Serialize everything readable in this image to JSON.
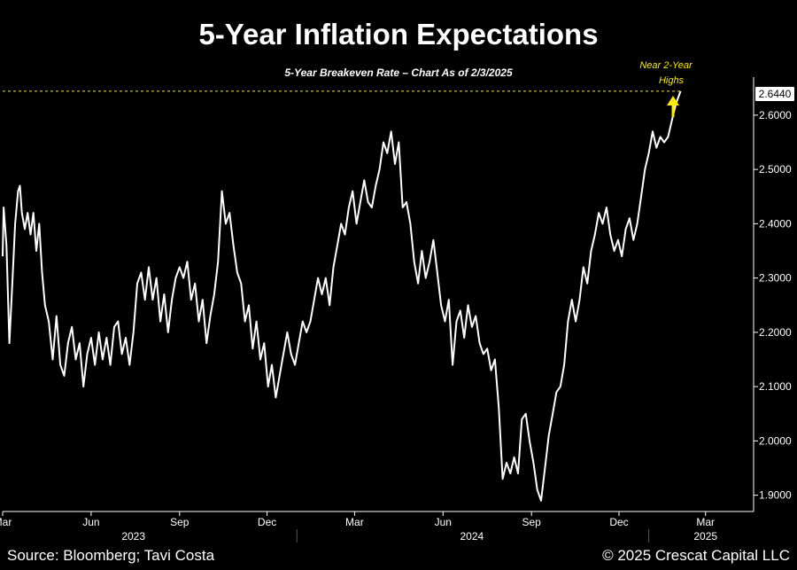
{
  "chart_data": {
    "type": "line",
    "title": "5-Year Inflation Expectations",
    "subtitle": "5-Year Breakeven Rate – Chart As of 2/3/2025",
    "ylim": [
      1.87,
      2.67
    ],
    "yticks": [
      "1.9000",
      "2.0000",
      "2.1000",
      "2.2000",
      "2.3000",
      "2.4000",
      "2.5000",
      "2.6000"
    ],
    "last_value_label": "2.6440",
    "last_value": 2.644,
    "x_month_ticks": [
      {
        "label": "Mar",
        "date": "2023-03-01"
      },
      {
        "label": "Jun",
        "date": "2023-06-01"
      },
      {
        "label": "Sep",
        "date": "2023-09-01"
      },
      {
        "label": "Dec",
        "date": "2023-12-01"
      },
      {
        "label": "Mar",
        "date": "2024-03-01"
      },
      {
        "label": "Jun",
        "date": "2024-06-01"
      },
      {
        "label": "Sep",
        "date": "2024-09-01"
      },
      {
        "label": "Dec",
        "date": "2024-12-01"
      },
      {
        "label": "Mar",
        "date": "2025-03-01"
      }
    ],
    "x_year_labels": [
      {
        "label": "2023",
        "date": "2023-07-15"
      },
      {
        "label": "2024",
        "date": "2024-07-01"
      },
      {
        "label": "2025",
        "date": "2025-03-01"
      }
    ],
    "x_range": [
      "2023-03-01",
      "2025-04-20"
    ],
    "series": [
      {
        "color": "#ffffff",
        "points": [
          [
            "2023-03-01",
            2.34
          ],
          [
            "2023-03-02",
            2.43
          ],
          [
            "2023-03-05",
            2.36
          ],
          [
            "2023-03-08",
            2.18
          ],
          [
            "2023-03-11",
            2.29
          ],
          [
            "2023-03-14",
            2.4
          ],
          [
            "2023-03-17",
            2.46
          ],
          [
            "2023-03-19",
            2.47
          ],
          [
            "2023-03-21",
            2.42
          ],
          [
            "2023-03-24",
            2.39
          ],
          [
            "2023-03-27",
            2.42
          ],
          [
            "2023-03-30",
            2.38
          ],
          [
            "2023-04-02",
            2.42
          ],
          [
            "2023-04-05",
            2.35
          ],
          [
            "2023-04-08",
            2.4
          ],
          [
            "2023-04-11",
            2.31
          ],
          [
            "2023-04-14",
            2.25
          ],
          [
            "2023-04-18",
            2.22
          ],
          [
            "2023-04-22",
            2.15
          ],
          [
            "2023-04-26",
            2.23
          ],
          [
            "2023-04-30",
            2.14
          ],
          [
            "2023-05-04",
            2.12
          ],
          [
            "2023-05-08",
            2.18
          ],
          [
            "2023-05-12",
            2.21
          ],
          [
            "2023-05-16",
            2.15
          ],
          [
            "2023-05-20",
            2.18
          ],
          [
            "2023-05-24",
            2.1
          ],
          [
            "2023-05-28",
            2.16
          ],
          [
            "2023-06-01",
            2.19
          ],
          [
            "2023-06-05",
            2.14
          ],
          [
            "2023-06-09",
            2.2
          ],
          [
            "2023-06-13",
            2.15
          ],
          [
            "2023-06-17",
            2.19
          ],
          [
            "2023-06-21",
            2.14
          ],
          [
            "2023-06-25",
            2.21
          ],
          [
            "2023-06-29",
            2.22
          ],
          [
            "2023-07-03",
            2.16
          ],
          [
            "2023-07-07",
            2.19
          ],
          [
            "2023-07-11",
            2.14
          ],
          [
            "2023-07-15",
            2.2
          ],
          [
            "2023-07-19",
            2.29
          ],
          [
            "2023-07-23",
            2.31
          ],
          [
            "2023-07-27",
            2.26
          ],
          [
            "2023-07-31",
            2.32
          ],
          [
            "2023-08-04",
            2.26
          ],
          [
            "2023-08-08",
            2.3
          ],
          [
            "2023-08-12",
            2.22
          ],
          [
            "2023-08-16",
            2.27
          ],
          [
            "2023-08-20",
            2.2
          ],
          [
            "2023-08-24",
            2.26
          ],
          [
            "2023-08-28",
            2.3
          ],
          [
            "2023-09-01",
            2.32
          ],
          [
            "2023-09-05",
            2.3
          ],
          [
            "2023-09-09",
            2.33
          ],
          [
            "2023-09-13",
            2.26
          ],
          [
            "2023-09-17",
            2.29
          ],
          [
            "2023-09-21",
            2.22
          ],
          [
            "2023-09-25",
            2.26
          ],
          [
            "2023-09-29",
            2.18
          ],
          [
            "2023-10-03",
            2.23
          ],
          [
            "2023-10-07",
            2.27
          ],
          [
            "2023-10-11",
            2.33
          ],
          [
            "2023-10-15",
            2.46
          ],
          [
            "2023-10-19",
            2.4
          ],
          [
            "2023-10-23",
            2.42
          ],
          [
            "2023-10-27",
            2.36
          ],
          [
            "2023-10-31",
            2.31
          ],
          [
            "2023-11-04",
            2.29
          ],
          [
            "2023-11-08",
            2.22
          ],
          [
            "2023-11-12",
            2.25
          ],
          [
            "2023-11-16",
            2.17
          ],
          [
            "2023-11-20",
            2.22
          ],
          [
            "2023-11-24",
            2.15
          ],
          [
            "2023-11-28",
            2.18
          ],
          [
            "2023-12-02",
            2.1
          ],
          [
            "2023-12-06",
            2.14
          ],
          [
            "2023-12-10",
            2.08
          ],
          [
            "2023-12-14",
            2.12
          ],
          [
            "2023-12-18",
            2.16
          ],
          [
            "2023-12-22",
            2.2
          ],
          [
            "2023-12-26",
            2.16
          ],
          [
            "2023-12-30",
            2.14
          ],
          [
            "2024-01-03",
            2.18
          ],
          [
            "2024-01-07",
            2.22
          ],
          [
            "2024-01-11",
            2.2
          ],
          [
            "2024-01-15",
            2.22
          ],
          [
            "2024-01-19",
            2.26
          ],
          [
            "2024-01-23",
            2.3
          ],
          [
            "2024-01-27",
            2.27
          ],
          [
            "2024-01-31",
            2.3
          ],
          [
            "2024-02-04",
            2.25
          ],
          [
            "2024-02-08",
            2.32
          ],
          [
            "2024-02-12",
            2.36
          ],
          [
            "2024-02-16",
            2.4
          ],
          [
            "2024-02-20",
            2.38
          ],
          [
            "2024-02-24",
            2.43
          ],
          [
            "2024-02-28",
            2.46
          ],
          [
            "2024-03-03",
            2.4
          ],
          [
            "2024-03-07",
            2.44
          ],
          [
            "2024-03-11",
            2.48
          ],
          [
            "2024-03-15",
            2.44
          ],
          [
            "2024-03-19",
            2.43
          ],
          [
            "2024-03-23",
            2.47
          ],
          [
            "2024-03-27",
            2.5
          ],
          [
            "2024-03-31",
            2.55
          ],
          [
            "2024-04-04",
            2.53
          ],
          [
            "2024-04-08",
            2.57
          ],
          [
            "2024-04-12",
            2.51
          ],
          [
            "2024-04-16",
            2.55
          ],
          [
            "2024-04-20",
            2.43
          ],
          [
            "2024-04-24",
            2.44
          ],
          [
            "2024-04-28",
            2.4
          ],
          [
            "2024-05-02",
            2.33
          ],
          [
            "2024-05-06",
            2.29
          ],
          [
            "2024-05-10",
            2.35
          ],
          [
            "2024-05-14",
            2.3
          ],
          [
            "2024-05-18",
            2.33
          ],
          [
            "2024-05-22",
            2.37
          ],
          [
            "2024-05-26",
            2.31
          ],
          [
            "2024-05-30",
            2.25
          ],
          [
            "2024-06-03",
            2.22
          ],
          [
            "2024-06-07",
            2.26
          ],
          [
            "2024-06-11",
            2.14
          ],
          [
            "2024-06-15",
            2.22
          ],
          [
            "2024-06-19",
            2.24
          ],
          [
            "2024-06-23",
            2.19
          ],
          [
            "2024-06-27",
            2.25
          ],
          [
            "2024-07-01",
            2.21
          ],
          [
            "2024-07-05",
            2.23
          ],
          [
            "2024-07-09",
            2.18
          ],
          [
            "2024-07-13",
            2.16
          ],
          [
            "2024-07-17",
            2.17
          ],
          [
            "2024-07-21",
            2.13
          ],
          [
            "2024-07-25",
            2.15
          ],
          [
            "2024-07-29",
            2.06
          ],
          [
            "2024-08-02",
            1.93
          ],
          [
            "2024-08-06",
            1.96
          ],
          [
            "2024-08-10",
            1.94
          ],
          [
            "2024-08-14",
            1.97
          ],
          [
            "2024-08-18",
            1.94
          ],
          [
            "2024-08-22",
            2.04
          ],
          [
            "2024-08-26",
            2.05
          ],
          [
            "2024-08-30",
            2.0
          ],
          [
            "2024-09-03",
            1.96
          ],
          [
            "2024-09-07",
            1.91
          ],
          [
            "2024-09-11",
            1.89
          ],
          [
            "2024-09-15",
            1.95
          ],
          [
            "2024-09-19",
            2.01
          ],
          [
            "2024-09-23",
            2.05
          ],
          [
            "2024-09-27",
            2.09
          ],
          [
            "2024-10-01",
            2.1
          ],
          [
            "2024-10-05",
            2.14
          ],
          [
            "2024-10-09",
            2.22
          ],
          [
            "2024-10-13",
            2.26
          ],
          [
            "2024-10-17",
            2.22
          ],
          [
            "2024-10-21",
            2.26
          ],
          [
            "2024-10-25",
            2.32
          ],
          [
            "2024-10-29",
            2.29
          ],
          [
            "2024-11-02",
            2.35
          ],
          [
            "2024-11-06",
            2.38
          ],
          [
            "2024-11-10",
            2.42
          ],
          [
            "2024-11-14",
            2.4
          ],
          [
            "2024-11-18",
            2.43
          ],
          [
            "2024-11-22",
            2.38
          ],
          [
            "2024-11-26",
            2.35
          ],
          [
            "2024-11-30",
            2.37
          ],
          [
            "2024-12-04",
            2.34
          ],
          [
            "2024-12-08",
            2.39
          ],
          [
            "2024-12-12",
            2.41
          ],
          [
            "2024-12-16",
            2.37
          ],
          [
            "2024-12-20",
            2.4
          ],
          [
            "2024-12-24",
            2.45
          ],
          [
            "2024-12-28",
            2.5
          ],
          [
            "2025-01-01",
            2.53
          ],
          [
            "2025-01-05",
            2.57
          ],
          [
            "2025-01-09",
            2.54
          ],
          [
            "2025-01-13",
            2.56
          ],
          [
            "2025-01-17",
            2.55
          ],
          [
            "2025-01-21",
            2.56
          ],
          [
            "2025-01-25",
            2.59
          ],
          [
            "2025-01-29",
            2.62
          ],
          [
            "2025-02-03",
            2.644
          ]
        ]
      }
    ],
    "annotation": {
      "line1": "Near 2-Year",
      "line2": "Highs",
      "color": "#ffea00"
    },
    "source": "Source: Bloomberg; Tavi Costa",
    "copyright": "© 2025 Crescat Capital LLC"
  }
}
